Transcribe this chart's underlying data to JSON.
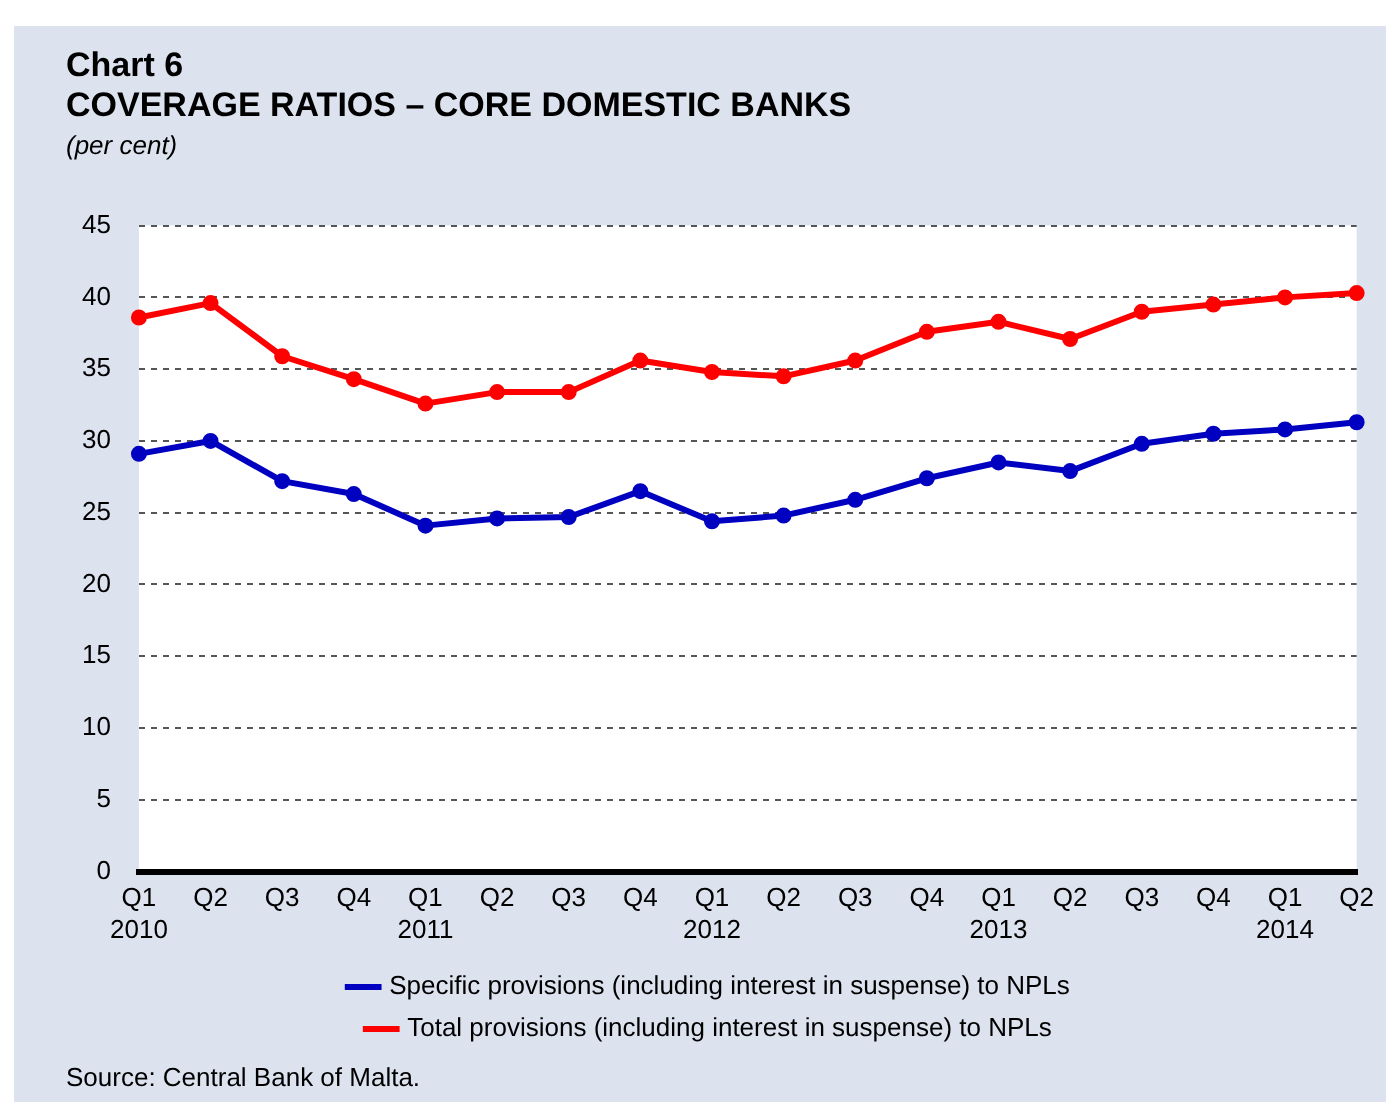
{
  "chart_data": {
    "type": "line",
    "title": "Chart 6\nCOVERAGE RATIOS – CORE DOMESTIC BANKS",
    "subtitle": "(per cent)",
    "categories": [
      "Q1\n2010",
      "Q2",
      "Q3",
      "Q4",
      "Q1\n2011",
      "Q2",
      "Q3",
      "Q4",
      "Q1\n2012",
      "Q2",
      "Q3",
      "Q4",
      "Q1\n2013",
      "Q2",
      "Q3",
      "Q4",
      "Q1\n2014",
      "Q2"
    ],
    "series": [
      {
        "name": "Specific provisions (including interest in suspense) to NPLs",
        "color": "#0000c0",
        "values": [
          29.1,
          30.0,
          27.2,
          26.3,
          24.1,
          24.6,
          24.7,
          26.5,
          24.4,
          24.8,
          25.9,
          27.4,
          28.5,
          27.9,
          29.8,
          30.5,
          30.8,
          31.3
        ]
      },
      {
        "name": "Total provisions (including interest in suspense) to NPLs",
        "color": "#ff0000",
        "values": [
          38.6,
          39.6,
          35.9,
          34.3,
          32.6,
          33.4,
          33.4,
          35.6,
          34.8,
          34.5,
          35.6,
          37.6,
          38.3,
          37.1,
          39.0,
          39.5,
          40.0,
          40.3
        ]
      }
    ],
    "ylim": [
      0,
      45
    ],
    "yticks": [
      0,
      5,
      10,
      15,
      20,
      25,
      30,
      35,
      40,
      45
    ],
    "grid": "y",
    "legend": "bottom",
    "marker": "circle",
    "line_style": "solid",
    "annotations": [
      "Source: Central Bank of Malta."
    ]
  }
}
